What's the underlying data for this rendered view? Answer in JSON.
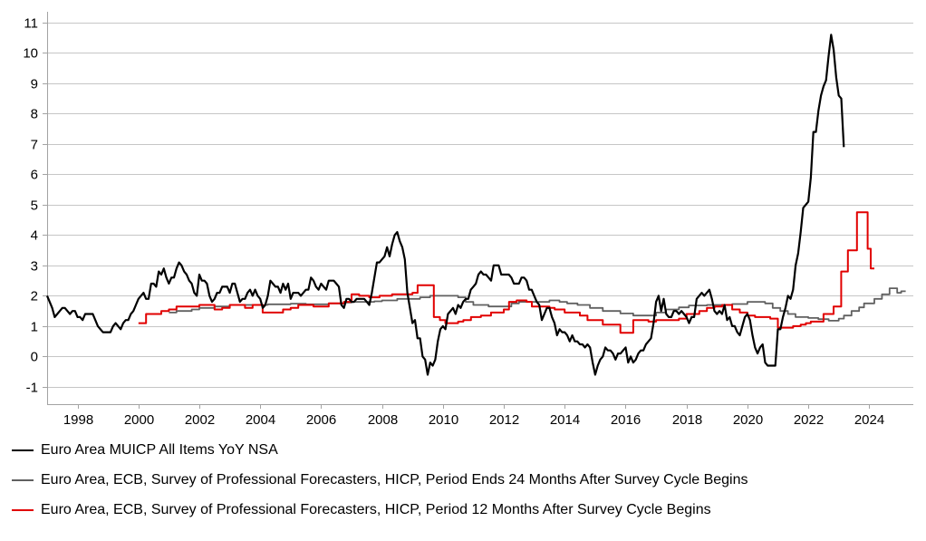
{
  "chart_data": {
    "type": "line",
    "title": "",
    "x_axis": {
      "range": [
        1997,
        2025.45
      ],
      "ticks": [
        1998,
        2000,
        2002,
        2004,
        2006,
        2008,
        2010,
        2012,
        2014,
        2016,
        2018,
        2020,
        2022,
        2024
      ]
    },
    "y_axis": {
      "range": [
        -1.57,
        11
      ],
      "ticks": [
        -1,
        0,
        1,
        2,
        3,
        4,
        5,
        6,
        7,
        8,
        9,
        10,
        11
      ]
    },
    "grid": true,
    "legend_position": "bottom-left",
    "colors": {
      "grid": "#c6c6c6",
      "axis": "#a3a3a3",
      "text": "#000000"
    },
    "series": [
      {
        "name": "Euro Area MUICP All Items YoY NSA",
        "color": "#000000",
        "width": 2.2,
        "interpolation": "linear",
        "x_start": 1997.0,
        "x_step": 0.0833333,
        "values": [
          2.0,
          1.8,
          1.6,
          1.3,
          1.4,
          1.5,
          1.6,
          1.6,
          1.5,
          1.4,
          1.5,
          1.5,
          1.3,
          1.3,
          1.2,
          1.4,
          1.4,
          1.4,
          1.4,
          1.2,
          1.0,
          0.9,
          0.8,
          0.8,
          0.8,
          0.8,
          1.0,
          1.1,
          1.0,
          0.9,
          1.1,
          1.2,
          1.2,
          1.4,
          1.5,
          1.7,
          1.9,
          2.0,
          2.1,
          1.9,
          1.9,
          2.4,
          2.4,
          2.3,
          2.8,
          2.7,
          2.9,
          2.6,
          2.4,
          2.6,
          2.6,
          2.9,
          3.1,
          3.0,
          2.8,
          2.7,
          2.5,
          2.4,
          2.1,
          2.0,
          2.7,
          2.5,
          2.5,
          2.4,
          2.0,
          1.8,
          1.9,
          2.1,
          2.1,
          2.3,
          2.3,
          2.3,
          2.1,
          2.4,
          2.4,
          2.1,
          1.8,
          1.9,
          1.9,
          2.1,
          2.2,
          2.0,
          2.2,
          2.0,
          1.9,
          1.6,
          1.7,
          2.0,
          2.5,
          2.4,
          2.3,
          2.3,
          2.1,
          2.4,
          2.2,
          2.4,
          1.9,
          2.1,
          2.1,
          2.1,
          2.0,
          2.1,
          2.2,
          2.2,
          2.6,
          2.5,
          2.3,
          2.2,
          2.4,
          2.3,
          2.2,
          2.5,
          2.5,
          2.5,
          2.4,
          2.3,
          1.7,
          1.6,
          1.9,
          1.9,
          1.8,
          1.8,
          1.9,
          1.9,
          1.9,
          1.9,
          1.8,
          1.7,
          2.1,
          2.6,
          3.1,
          3.1,
          3.2,
          3.3,
          3.6,
          3.3,
          3.7,
          4.0,
          4.1,
          3.8,
          3.6,
          3.2,
          2.1,
          1.6,
          1.1,
          1.2,
          0.6,
          0.6,
          0.0,
          -0.1,
          -0.6,
          -0.2,
          -0.3,
          -0.1,
          0.5,
          0.9,
          1.0,
          0.9,
          1.4,
          1.5,
          1.6,
          1.4,
          1.7,
          1.6,
          1.8,
          1.9,
          1.9,
          2.2,
          2.3,
          2.4,
          2.7,
          2.8,
          2.7,
          2.7,
          2.6,
          2.5,
          3.0,
          3.0,
          3.0,
          2.7,
          2.7,
          2.7,
          2.7,
          2.6,
          2.4,
          2.4,
          2.4,
          2.6,
          2.6,
          2.5,
          2.2,
          2.2,
          2.0,
          1.8,
          1.7,
          1.2,
          1.4,
          1.6,
          1.6,
          1.3,
          1.1,
          0.7,
          0.9,
          0.8,
          0.8,
          0.7,
          0.5,
          0.7,
          0.5,
          0.5,
          0.4,
          0.4,
          0.3,
          0.4,
          0.3,
          -0.2,
          -0.6,
          -0.3,
          -0.1,
          0.0,
          0.3,
          0.2,
          0.2,
          0.1,
          -0.1,
          0.1,
          0.1,
          0.2,
          0.3,
          -0.2,
          0.0,
          -0.2,
          -0.1,
          0.1,
          0.2,
          0.2,
          0.4,
          0.5,
          0.6,
          1.1,
          1.8,
          2.0,
          1.5,
          1.9,
          1.4,
          1.3,
          1.3,
          1.5,
          1.5,
          1.4,
          1.5,
          1.4,
          1.3,
          1.1,
          1.3,
          1.3,
          1.9,
          2.0,
          2.1,
          2.0,
          2.1,
          2.2,
          1.9,
          1.5,
          1.4,
          1.5,
          1.4,
          1.7,
          1.2,
          1.3,
          1.0,
          1.0,
          0.8,
          0.7,
          1.0,
          1.3,
          1.4,
          1.2,
          0.7,
          0.3,
          0.1,
          0.3,
          0.4,
          -0.2,
          -0.3,
          -0.3,
          -0.3,
          -0.3,
          0.9,
          0.9,
          1.3,
          1.6,
          2.0,
          1.9,
          2.2,
          3.0,
          3.4,
          4.1,
          4.9,
          5.0,
          5.1,
          5.9,
          7.4,
          7.4,
          8.1,
          8.6,
          8.9,
          9.1,
          9.9,
          10.6,
          10.1,
          9.2,
          8.6,
          8.5,
          6.9
        ]
      },
      {
        "name": "Euro Area, ECB, Survey of Professional Forecasters, HICP, Period Ends 24 Months After Survey Cycle Begins",
        "color": "#606060",
        "width": 1.8,
        "interpolation": "step",
        "x_end": 2025.2,
        "points": [
          [
            2001.0,
            1.45
          ],
          [
            2001.25,
            1.5
          ],
          [
            2001.75,
            1.55
          ],
          [
            2002.0,
            1.6
          ],
          [
            2002.5,
            1.65
          ],
          [
            2003.0,
            1.7
          ],
          [
            2004.25,
            1.72
          ],
          [
            2005.0,
            1.74
          ],
          [
            2005.5,
            1.72
          ],
          [
            2006.25,
            1.75
          ],
          [
            2006.75,
            1.78
          ],
          [
            2007.0,
            1.8
          ],
          [
            2007.75,
            1.82
          ],
          [
            2008.0,
            1.85
          ],
          [
            2008.5,
            1.9
          ],
          [
            2009.25,
            1.95
          ],
          [
            2009.58,
            2.0
          ],
          [
            2010.5,
            1.95
          ],
          [
            2010.75,
            1.8
          ],
          [
            2011.0,
            1.7
          ],
          [
            2011.5,
            1.65
          ],
          [
            2012.25,
            1.75
          ],
          [
            2012.5,
            1.8
          ],
          [
            2013.5,
            1.85
          ],
          [
            2013.83,
            1.8
          ],
          [
            2014.08,
            1.75
          ],
          [
            2014.42,
            1.7
          ],
          [
            2014.83,
            1.6
          ],
          [
            2015.25,
            1.5
          ],
          [
            2015.83,
            1.42
          ],
          [
            2016.25,
            1.35
          ],
          [
            2017.0,
            1.45
          ],
          [
            2017.33,
            1.55
          ],
          [
            2017.75,
            1.62
          ],
          [
            2018.08,
            1.68
          ],
          [
            2018.67,
            1.7
          ],
          [
            2019.5,
            1.73
          ],
          [
            2020.0,
            1.8
          ],
          [
            2020.58,
            1.75
          ],
          [
            2020.83,
            1.6
          ],
          [
            2021.08,
            1.5
          ],
          [
            2021.33,
            1.4
          ],
          [
            2021.58,
            1.3
          ],
          [
            2022.0,
            1.27
          ],
          [
            2022.33,
            1.23
          ],
          [
            2022.67,
            1.18
          ],
          [
            2023.0,
            1.25
          ],
          [
            2023.17,
            1.35
          ],
          [
            2023.42,
            1.5
          ],
          [
            2023.67,
            1.62
          ],
          [
            2023.83,
            1.75
          ],
          [
            2024.17,
            1.9
          ],
          [
            2024.42,
            2.05
          ],
          [
            2024.67,
            2.25
          ],
          [
            2024.92,
            2.1
          ],
          [
            2025.05,
            2.15
          ]
        ]
      },
      {
        "name": "Euro Area, ECB, Survey of Professional Forecasters, HICP, Period 12 Months After Survey Cycle Begins",
        "color": "#e10000",
        "width": 2.0,
        "interpolation": "step",
        "x_end": 2024.17,
        "points": [
          [
            2000.0,
            1.1
          ],
          [
            2000.25,
            1.4
          ],
          [
            2000.75,
            1.5
          ],
          [
            2001.0,
            1.55
          ],
          [
            2001.25,
            1.65
          ],
          [
            2002.0,
            1.7
          ],
          [
            2002.5,
            1.55
          ],
          [
            2002.75,
            1.6
          ],
          [
            2003.0,
            1.7
          ],
          [
            2003.5,
            1.6
          ],
          [
            2003.75,
            1.7
          ],
          [
            2004.08,
            1.45
          ],
          [
            2004.75,
            1.55
          ],
          [
            2005.0,
            1.6
          ],
          [
            2005.25,
            1.7
          ],
          [
            2005.75,
            1.65
          ],
          [
            2006.25,
            1.75
          ],
          [
            2006.75,
            1.8
          ],
          [
            2007.0,
            2.05
          ],
          [
            2007.25,
            2.0
          ],
          [
            2007.58,
            1.95
          ],
          [
            2007.92,
            2.0
          ],
          [
            2008.33,
            2.05
          ],
          [
            2009.0,
            2.1
          ],
          [
            2009.17,
            2.35
          ],
          [
            2009.7,
            1.3
          ],
          [
            2009.9,
            1.2
          ],
          [
            2010.08,
            1.1
          ],
          [
            2010.5,
            1.15
          ],
          [
            2010.67,
            1.2
          ],
          [
            2010.92,
            1.3
          ],
          [
            2011.25,
            1.35
          ],
          [
            2011.58,
            1.45
          ],
          [
            2012.0,
            1.55
          ],
          [
            2012.17,
            1.8
          ],
          [
            2012.42,
            1.85
          ],
          [
            2012.75,
            1.8
          ],
          [
            2012.92,
            1.65
          ],
          [
            2013.5,
            1.6
          ],
          [
            2013.67,
            1.55
          ],
          [
            2014.0,
            1.45
          ],
          [
            2014.5,
            1.35
          ],
          [
            2014.75,
            1.2
          ],
          [
            2015.25,
            1.05
          ],
          [
            2015.83,
            0.78
          ],
          [
            2016.25,
            1.2
          ],
          [
            2016.75,
            1.15
          ],
          [
            2017.0,
            1.2
          ],
          [
            2017.75,
            1.25
          ],
          [
            2018.0,
            1.4
          ],
          [
            2018.42,
            1.5
          ],
          [
            2018.67,
            1.6
          ],
          [
            2018.92,
            1.65
          ],
          [
            2019.17,
            1.7
          ],
          [
            2019.5,
            1.55
          ],
          [
            2019.75,
            1.45
          ],
          [
            2020.0,
            1.35
          ],
          [
            2020.25,
            1.3
          ],
          [
            2020.75,
            1.25
          ],
          [
            2021.0,
            0.95
          ],
          [
            2021.5,
            1.0
          ],
          [
            2021.75,
            1.05
          ],
          [
            2021.92,
            1.1
          ],
          [
            2022.08,
            1.15
          ],
          [
            2022.5,
            1.4
          ],
          [
            2022.83,
            1.65
          ],
          [
            2023.08,
            2.8
          ],
          [
            2023.3,
            3.5
          ],
          [
            2023.6,
            4.75
          ],
          [
            2023.95,
            3.55
          ],
          [
            2024.05,
            2.9
          ]
        ]
      }
    ]
  }
}
